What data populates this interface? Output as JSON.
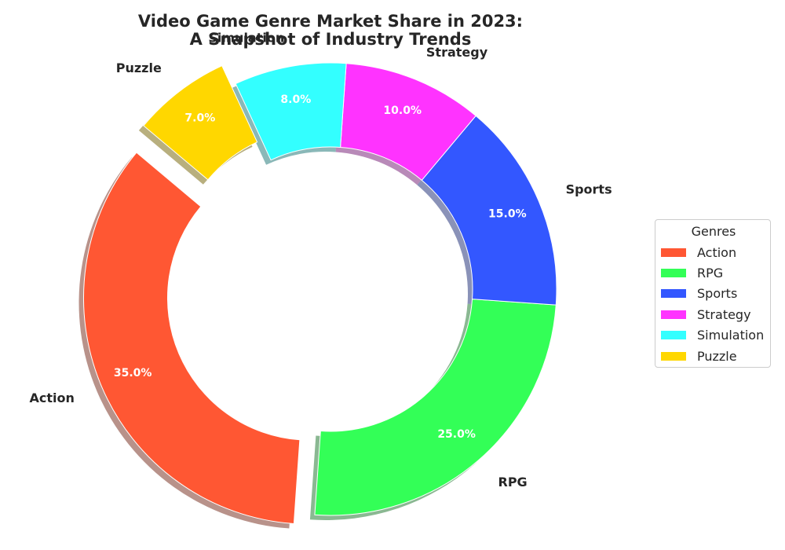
{
  "chart_data": {
    "type": "pie",
    "donut": true,
    "title_line1": "Video Game Genre Market Share in 2023:",
    "title_line2": "A Snapshot of Industry Trends",
    "categories": [
      "Action",
      "RPG",
      "Sports",
      "Strategy",
      "Simulation",
      "Puzzle"
    ],
    "values": [
      35,
      25,
      15,
      10,
      8,
      7
    ],
    "pct_labels": [
      "35.0%",
      "25.0%",
      "15.0%",
      "10.0%",
      "8.0%",
      "7.0%"
    ],
    "colors": [
      "#FF5733",
      "#33FF57",
      "#3357FF",
      "#FF33FF",
      "#33FFFF",
      "#FFD700"
    ],
    "exploded": [
      "Action",
      "Puzzle"
    ],
    "shadow": true,
    "legend_title": "Genres",
    "legend_placement": "center-right"
  }
}
